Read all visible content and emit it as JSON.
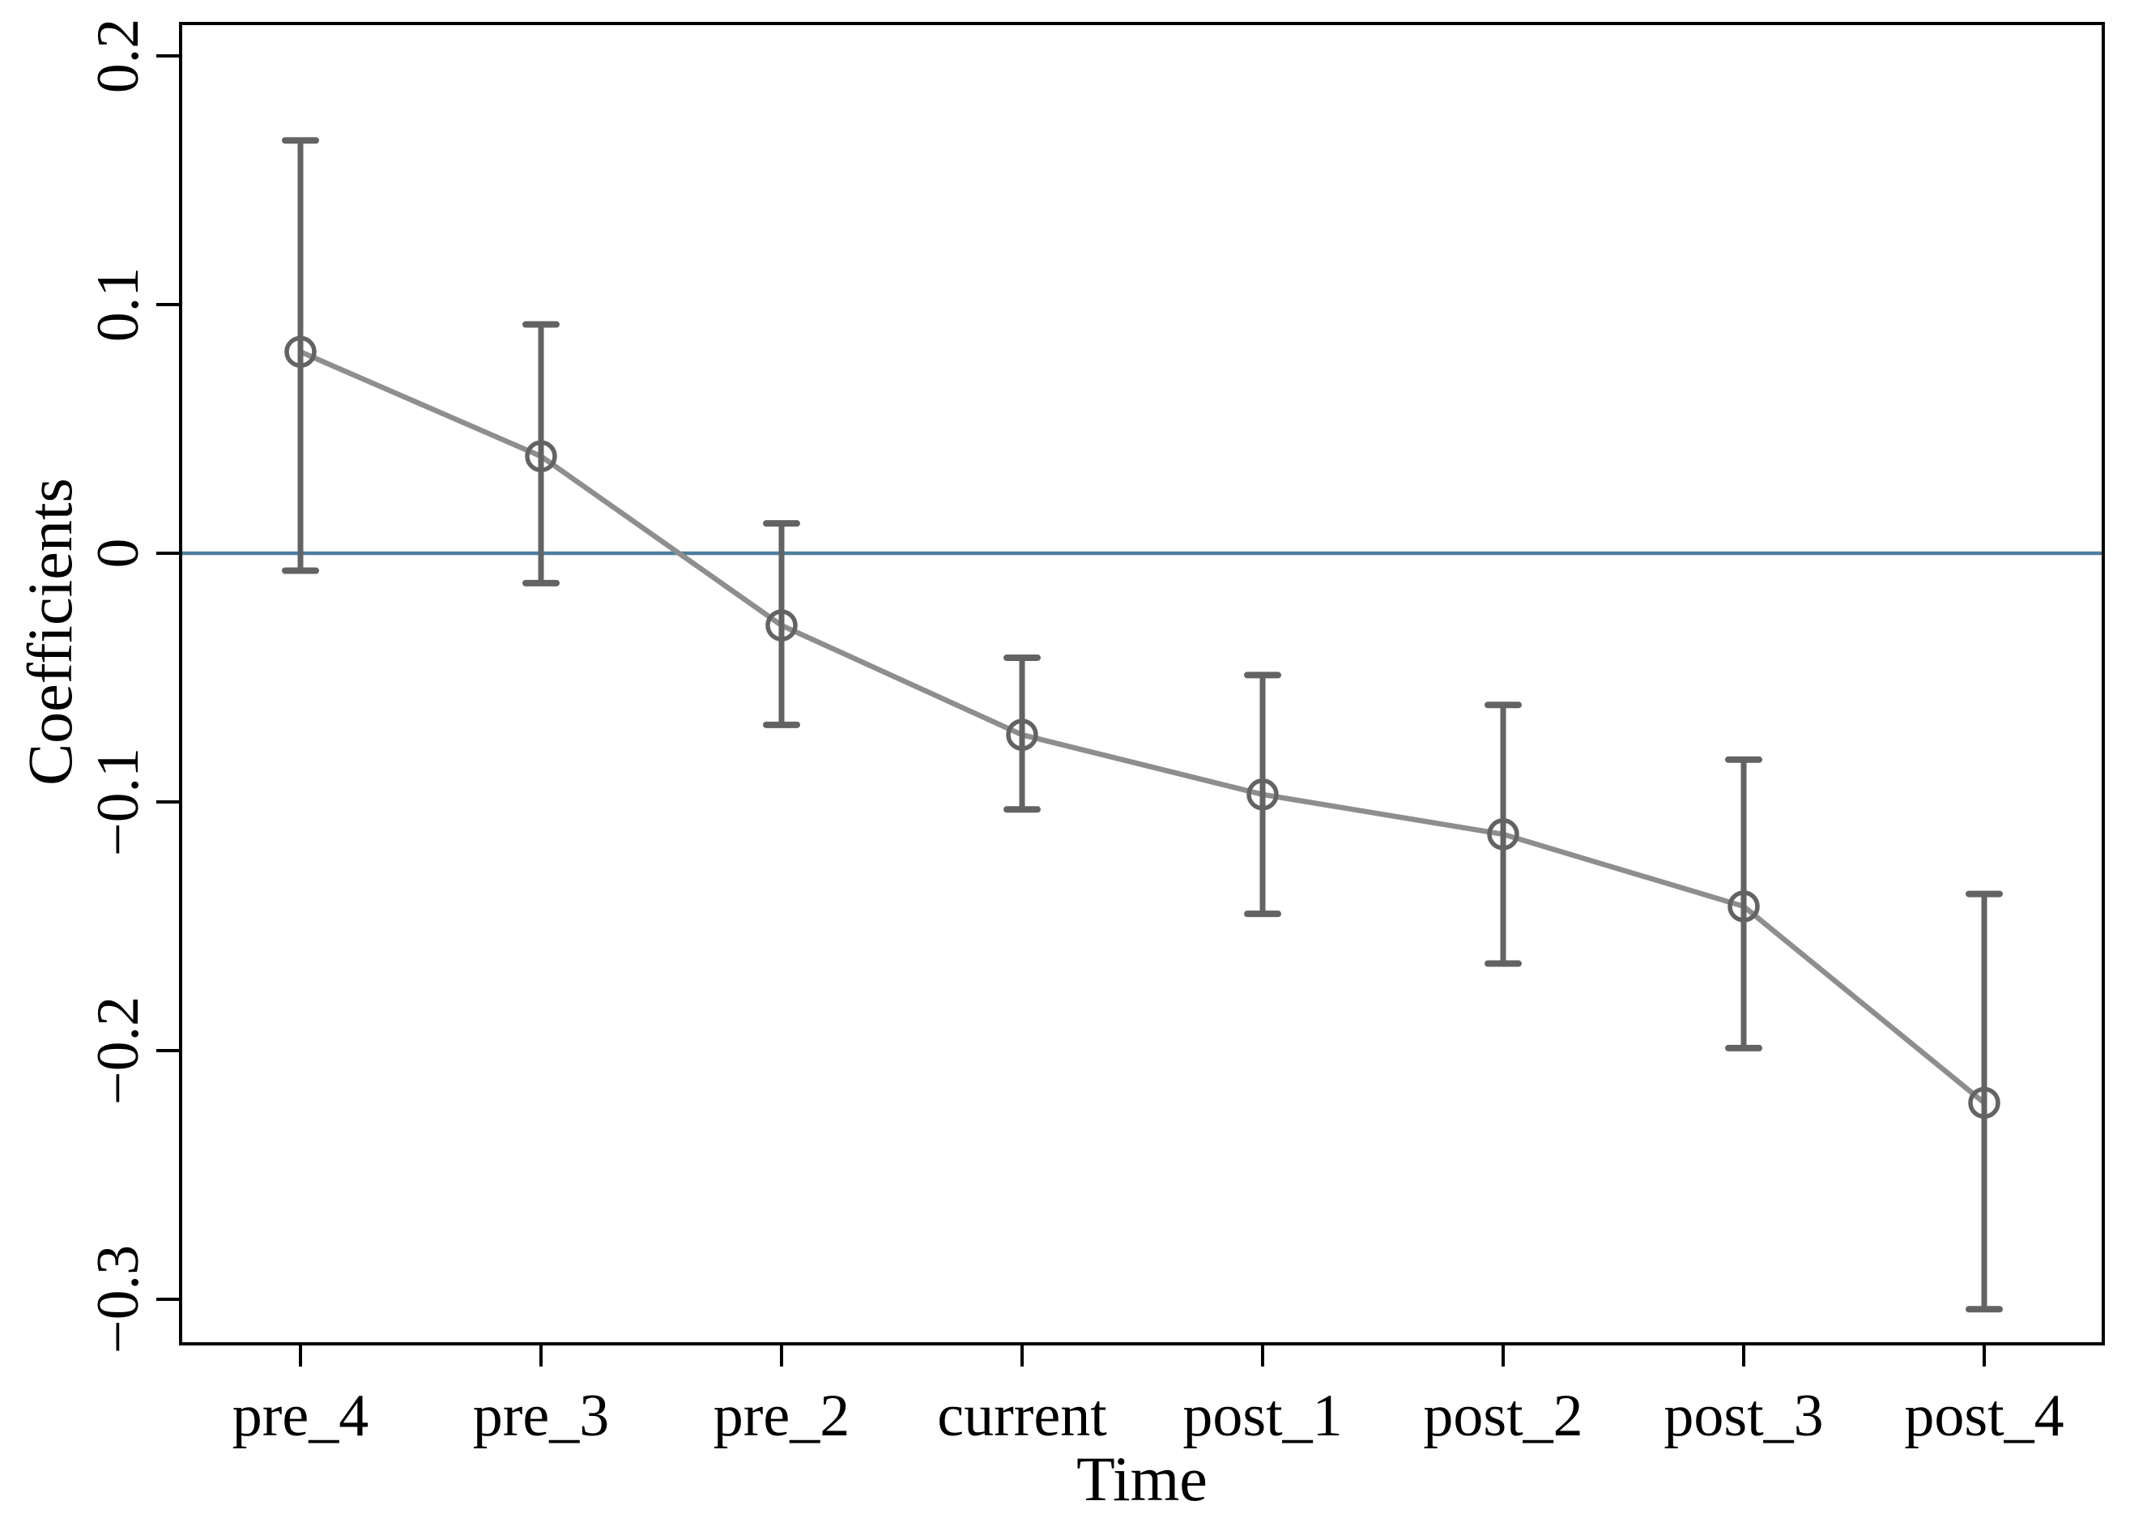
{
  "chart_data": {
    "type": "line",
    "subtype": "coefficient-plot-with-error-bars",
    "title": "",
    "xlabel": "Time",
    "ylabel": "Coefficients",
    "categories": [
      "pre_4",
      "pre_3",
      "pre_2",
      "current",
      "post_1",
      "post_2",
      "post_3",
      "post_4"
    ],
    "series": [
      {
        "name": "Coefficients",
        "values": [
          0.081,
          0.039,
          -0.029,
          -0.073,
          -0.097,
          -0.113,
          -0.142,
          -0.221
        ],
        "ci_high": [
          0.166,
          0.092,
          0.012,
          -0.042,
          -0.049,
          -0.061,
          -0.083,
          -0.137
        ],
        "ci_low": [
          -0.007,
          -0.012,
          -0.069,
          -0.103,
          -0.145,
          -0.165,
          -0.199,
          -0.304
        ]
      }
    ],
    "y_ticks": [
      {
        "value": 0.2,
        "label": "0.2"
      },
      {
        "value": 0.1,
        "label": "0.1"
      },
      {
        "value": 0,
        "label": "0"
      },
      {
        "value": -0.1,
        "label": "−0.1"
      },
      {
        "value": -0.2,
        "label": "−0.2"
      },
      {
        "value": -0.3,
        "label": "−0.3"
      }
    ],
    "ylim": [
      -0.318,
      0.213
    ],
    "reference_line": {
      "y": 0,
      "color": "#4d7f9f"
    },
    "grid": "off",
    "legend": "none",
    "colors": {
      "marker": "#636363",
      "error_bar": "#636363",
      "series_line": "#8e8e8e",
      "axis": "#000000",
      "background": "#ffffff"
    },
    "marker_style": "open-circle"
  }
}
